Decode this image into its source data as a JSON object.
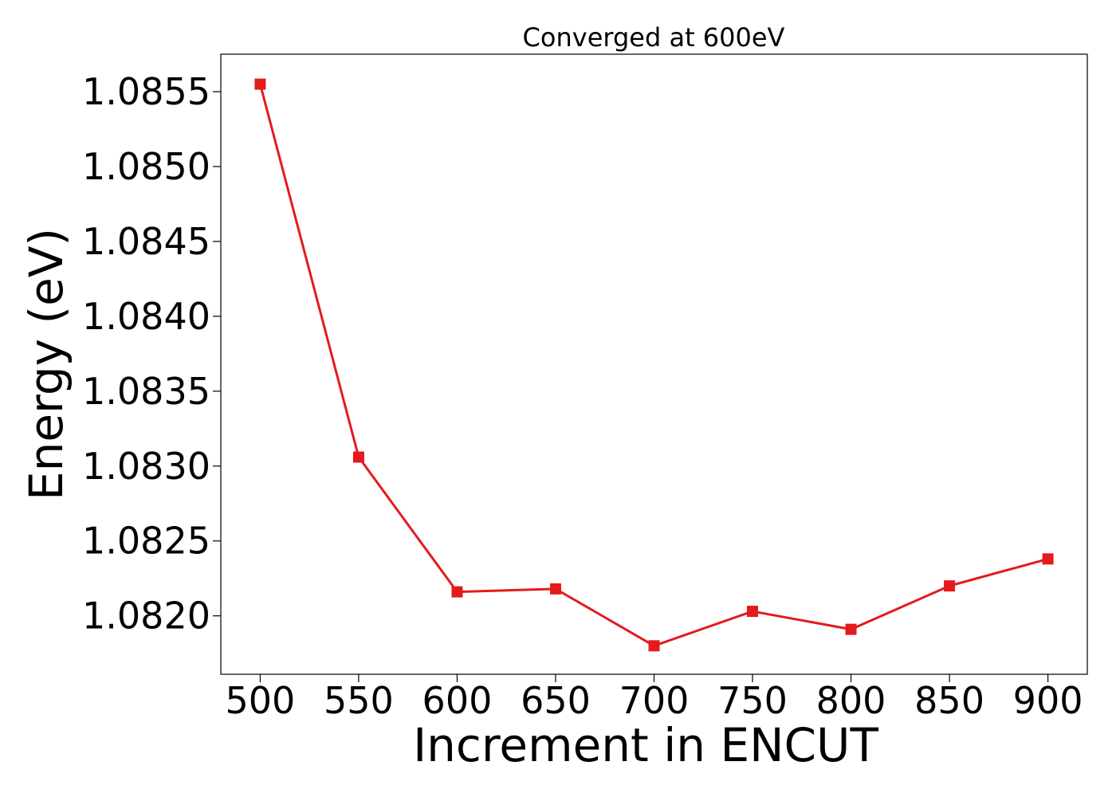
{
  "chart_data": {
    "type": "line",
    "title": "Converged at 600eV",
    "xlabel": "Increment in ENCUT",
    "ylabel": "Energy (eV)",
    "x": [
      500,
      550,
      600,
      650,
      700,
      750,
      800,
      850,
      900
    ],
    "series": [
      {
        "values": [
          1.08555,
          1.08306,
          1.08216,
          1.08218,
          1.0818,
          1.08203,
          1.08191,
          1.0822,
          1.08238
        ],
        "color": "#e41a1c",
        "marker": "square"
      }
    ],
    "xticks": [
      "500",
      "550",
      "600",
      "650",
      "700",
      "750",
      "800",
      "850",
      "900"
    ],
    "xtick_values": [
      500,
      550,
      600,
      650,
      700,
      750,
      800,
      850,
      900
    ],
    "yticks": [
      "1.0820",
      "1.0825",
      "1.0830",
      "1.0835",
      "1.0840",
      "1.0845",
      "1.0850",
      "1.0855"
    ],
    "ytick_values": [
      1.082,
      1.0825,
      1.083,
      1.0835,
      1.084,
      1.0845,
      1.085,
      1.0855
    ],
    "xlim": [
      480,
      920
    ],
    "ylim": [
      1.08161,
      1.08575
    ],
    "grid": false,
    "legend": false
  }
}
